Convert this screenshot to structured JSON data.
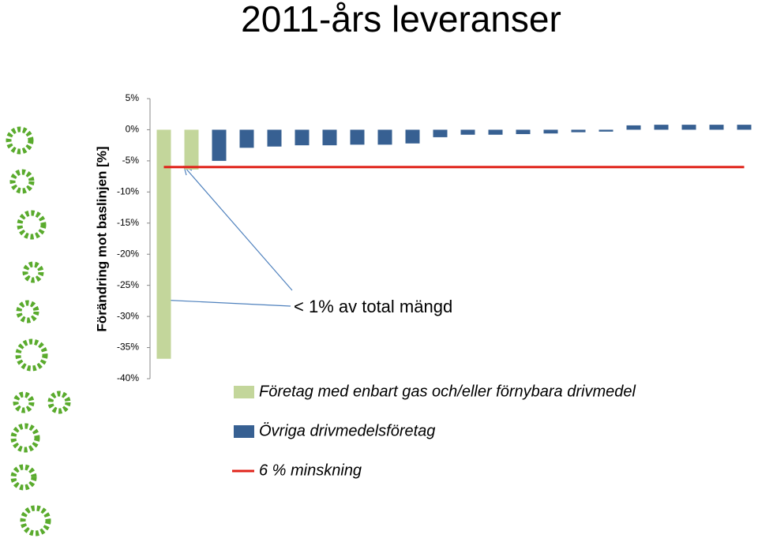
{
  "chart_data": {
    "type": "bar",
    "title": "2011-års leveranser",
    "y_label": "Förändring mot baslinjen [%]",
    "annotation": "< 1% av total mängd",
    "categories": [
      null,
      null,
      null,
      null,
      null,
      null,
      null,
      null,
      null,
      null,
      null,
      null,
      null,
      null,
      null,
      null,
      null,
      null,
      null,
      null,
      null,
      null
    ],
    "series": [
      {
        "name": "Företag med enbart gas och/eller förnybara drivmedel",
        "type": "bar",
        "color": "#c3d69b",
        "values": [
          -36.8,
          -6.4,
          null,
          null,
          null,
          null,
          null,
          null,
          null,
          null,
          null,
          null,
          null,
          null,
          null,
          null,
          null,
          null,
          null,
          null,
          null,
          null
        ]
      },
      {
        "name": "Övriga drivmedelsföretag",
        "type": "bar",
        "color": "#376092",
        "values": [
          null,
          null,
          -5.0,
          -2.9,
          -2.7,
          -2.5,
          -2.5,
          -2.4,
          -2.4,
          -2.2,
          -1.2,
          -0.8,
          -0.8,
          -0.7,
          -0.6,
          -0.4,
          -0.3,
          0.7,
          0.8,
          0.8,
          0.8,
          0.8
        ]
      },
      {
        "name": "6 % minskning",
        "type": "line",
        "color": "#e0241b",
        "values": [
          -6,
          -6,
          -6,
          -6,
          -6,
          -6,
          -6,
          -6,
          -6,
          -6,
          -6,
          -6,
          -6,
          -6,
          -6,
          -6,
          -6,
          -6,
          -6,
          -6,
          -6,
          -6
        ]
      }
    ],
    "ylim": [
      -40,
      5
    ],
    "yticks": [
      {
        "value": 5,
        "label": "5%"
      },
      {
        "value": 0,
        "label": "0%"
      },
      {
        "value": -5,
        "label": "-5%"
      },
      {
        "value": -10,
        "label": "-10%"
      },
      {
        "value": -15,
        "label": "-15%"
      },
      {
        "value": -20,
        "label": "-20%"
      },
      {
        "value": -25,
        "label": "-25%"
      },
      {
        "value": -30,
        "label": "-30%"
      },
      {
        "value": -35,
        "label": "-35%"
      },
      {
        "value": -40,
        "label": "-40%"
      }
    ]
  }
}
